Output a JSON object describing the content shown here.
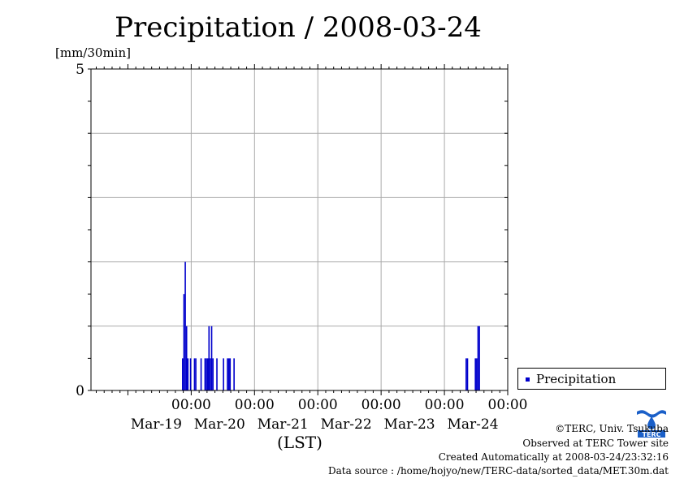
{
  "title": "Precipitation / 2008-03-24",
  "unit_label": "[mm/30min]",
  "x_axis_label": "(LST)",
  "legend": {
    "label": "Precipitation"
  },
  "colors": {
    "series": "#0000cc",
    "grid": "#aaaaaa",
    "axis": "#000000"
  },
  "footer": {
    "copyright": "©TERC, Univ. Tsukuba",
    "site": "Observed at TERC Tower site",
    "created": "Created Automatically at 2008-03-24/23:32:16",
    "source": "Data source : /home/hojyo/new/TERC-data/sorted_data/MET.30m.dat"
  },
  "logo": {
    "text": "TERC",
    "icon": "terc-logo-icon"
  },
  "chart_data": {
    "type": "bar",
    "title": "Precipitation / 2008-03-24",
    "ylabel": "[mm/30min]",
    "xlabel": "(LST)",
    "ylim": [
      0,
      5
    ],
    "ytick_labels": [
      "0",
      "5"
    ],
    "xtick_labels": [
      {
        "time": "00:00",
        "date": "Mar-19"
      },
      {
        "time": "00:00",
        "date": "Mar-20"
      },
      {
        "time": "00:00",
        "date": "Mar-21"
      },
      {
        "time": "00:00",
        "date": "Mar-22"
      },
      {
        "time": "00:00",
        "date": "Mar-23"
      },
      {
        "time": "00:00",
        "date": "Mar-24"
      }
    ],
    "x_range": [
      "2008-03-18 10:00",
      "2008-03-24 24:00"
    ],
    "grid": true,
    "legend_position": "right",
    "series": [
      {
        "name": "Precipitation",
        "points": [
          {
            "x": "2008-03-19 21:00",
            "y": 0.5
          },
          {
            "x": "2008-03-19 21:30",
            "y": 1.5
          },
          {
            "x": "2008-03-19 22:00",
            "y": 2.0
          },
          {
            "x": "2008-03-19 22:30",
            "y": 1.0
          },
          {
            "x": "2008-03-19 23:00",
            "y": 0.5
          },
          {
            "x": "2008-03-20 00:00",
            "y": 0.5
          },
          {
            "x": "2008-03-20 01:30",
            "y": 0.5
          },
          {
            "x": "2008-03-20 02:00",
            "y": 0.5
          },
          {
            "x": "2008-03-20 04:00",
            "y": 0.5
          },
          {
            "x": "2008-03-20 05:30",
            "y": 0.5
          },
          {
            "x": "2008-03-20 06:00",
            "y": 0.5
          },
          {
            "x": "2008-03-20 06:30",
            "y": 0.5
          },
          {
            "x": "2008-03-20 07:00",
            "y": 1.0
          },
          {
            "x": "2008-03-20 07:30",
            "y": 0.5
          },
          {
            "x": "2008-03-20 08:00",
            "y": 1.0
          },
          {
            "x": "2008-03-20 08:30",
            "y": 0.5
          },
          {
            "x": "2008-03-20 10:00",
            "y": 0.5
          },
          {
            "x": "2008-03-20 12:30",
            "y": 0.5
          },
          {
            "x": "2008-03-20 14:00",
            "y": 0.5
          },
          {
            "x": "2008-03-20 14:30",
            "y": 0.5
          },
          {
            "x": "2008-03-20 15:00",
            "y": 0.5
          },
          {
            "x": "2008-03-20 16:30",
            "y": 0.5
          },
          {
            "x": "2008-03-24 08:30",
            "y": 0.5
          },
          {
            "x": "2008-03-24 09:00",
            "y": 0.5
          },
          {
            "x": "2008-03-24 12:00",
            "y": 0.5
          },
          {
            "x": "2008-03-24 12:30",
            "y": 0.5
          },
          {
            "x": "2008-03-24 13:00",
            "y": 1.0
          },
          {
            "x": "2008-03-24 13:30",
            "y": 1.0
          }
        ]
      }
    ]
  }
}
